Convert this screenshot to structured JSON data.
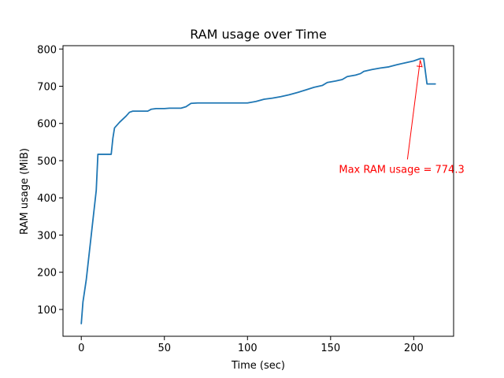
{
  "chart_data": {
    "type": "line",
    "title": "RAM usage over Time",
    "xlabel": "Time (sec)",
    "ylabel": "RAM usage (MiB)",
    "xlim": [
      -11,
      224
    ],
    "ylim": [
      28,
      809
    ],
    "x_ticks": [
      0,
      50,
      100,
      150,
      200
    ],
    "y_ticks": [
      100,
      200,
      300,
      400,
      500,
      600,
      700,
      800
    ],
    "grid": false,
    "legend": "none",
    "series": [
      {
        "color": "#1f77b4",
        "points": [
          [
            0,
            62
          ],
          [
            1,
            120
          ],
          [
            3,
            180
          ],
          [
            6,
            300
          ],
          [
            9,
            420
          ],
          [
            10,
            517
          ],
          [
            14,
            517
          ],
          [
            18,
            517
          ],
          [
            19,
            560
          ],
          [
            20,
            588
          ],
          [
            23,
            603
          ],
          [
            27,
            620
          ],
          [
            29,
            630
          ],
          [
            31,
            633
          ],
          [
            35,
            633
          ],
          [
            40,
            633
          ],
          [
            42,
            638
          ],
          [
            45,
            640
          ],
          [
            50,
            640
          ],
          [
            53,
            641
          ],
          [
            60,
            641
          ],
          [
            63,
            645
          ],
          [
            66,
            654
          ],
          [
            70,
            655
          ],
          [
            80,
            655
          ],
          [
            90,
            655
          ],
          [
            100,
            655
          ],
          [
            105,
            659
          ],
          [
            110,
            665
          ],
          [
            115,
            668
          ],
          [
            120,
            672
          ],
          [
            125,
            677
          ],
          [
            130,
            683
          ],
          [
            135,
            690
          ],
          [
            140,
            697
          ],
          [
            145,
            702
          ],
          [
            148,
            710
          ],
          [
            153,
            714
          ],
          [
            157,
            718
          ],
          [
            160,
            726
          ],
          [
            165,
            730
          ],
          [
            168,
            734
          ],
          [
            170,
            740
          ],
          [
            175,
            745
          ],
          [
            180,
            749
          ],
          [
            185,
            752
          ],
          [
            190,
            758
          ],
          [
            195,
            763
          ],
          [
            200,
            768
          ],
          [
            204,
            774.3
          ],
          [
            206,
            774.3
          ],
          [
            208,
            706
          ],
          [
            210,
            706
          ],
          [
            213,
            706
          ]
        ]
      }
    ],
    "annotations": [
      {
        "text": "Max RAM usage = 774.3",
        "xy": [
          204,
          774.3
        ],
        "xytext": [
          155,
          478
        ],
        "color": "#ff0000"
      }
    ]
  }
}
